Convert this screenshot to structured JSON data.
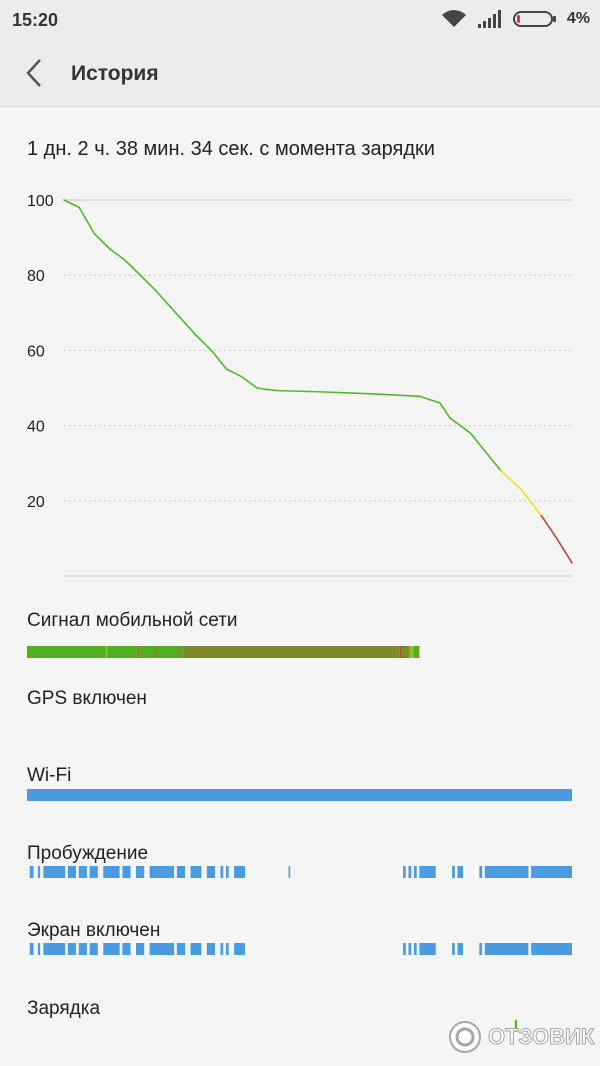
{
  "status_bar": {
    "time": "15:20",
    "battery_percent": "4%",
    "icons": [
      "wifi-icon",
      "signal-icon",
      "battery-icon"
    ]
  },
  "header": {
    "title": "История",
    "back_icon": "chevron-left-icon"
  },
  "summary": {
    "since_charge": "1 дн. 2 ч. 38 мин. 34 сек. с момента зарядки"
  },
  "chart_data": {
    "type": "line",
    "ytick_labels": [
      "100",
      "80",
      "60",
      "40",
      "20"
    ],
    "ylim": [
      0,
      100
    ],
    "grid": true,
    "x_fraction": [
      0,
      0.03,
      0.06,
      0.09,
      0.12,
      0.15,
      0.18,
      0.22,
      0.26,
      0.29,
      0.32,
      0.35,
      0.38,
      0.4,
      0.42,
      0.5,
      0.6,
      0.7,
      0.74,
      0.76,
      0.8,
      0.83,
      0.86,
      0.9,
      0.94,
      0.97,
      1.0
    ],
    "battery_level": [
      100,
      98,
      91,
      87,
      84,
      80,
      76,
      70,
      64,
      60,
      55,
      53,
      50,
      49.6,
      49.3,
      49,
      48.5,
      47.8,
      46,
      42,
      38,
      33,
      28,
      23,
      16,
      10,
      3.5
    ],
    "colors": {
      "good": "#52b82a",
      "medium": "#f2dd20",
      "low": "#c8413a"
    },
    "thresholds": {
      "medium_below": 29,
      "low_below": 14
    }
  },
  "tracks": {
    "mobile_signal": {
      "label": "Сигнал мобильной сети",
      "colors": {
        "strong": "#52ad1f",
        "medium": "#7e8a2b",
        "alt": "#8fbf2f",
        "weak": "#9a5a2a"
      },
      "segments": [
        {
          "from": 0,
          "to": 0.2,
          "c": "strong"
        },
        {
          "from": 0.2,
          "to": 0.205,
          "c": "alt"
        },
        {
          "from": 0.205,
          "to": 0.28,
          "c": "strong"
        },
        {
          "from": 0.28,
          "to": 0.29,
          "c": "medium"
        },
        {
          "from": 0.29,
          "to": 0.33,
          "c": "strong"
        },
        {
          "from": 0.33,
          "to": 0.335,
          "c": "medium"
        },
        {
          "from": 0.335,
          "to": 0.385,
          "c": "strong"
        },
        {
          "from": 0.385,
          "to": 0.39,
          "c": "medium"
        },
        {
          "from": 0.39,
          "to": 0.4,
          "c": "strong"
        },
        {
          "from": 0.4,
          "to": 0.95,
          "c": "medium"
        },
        {
          "from": 0.95,
          "to": 0.955,
          "c": "weak"
        },
        {
          "from": 0.955,
          "to": 0.975,
          "c": "medium"
        },
        {
          "from": 0.975,
          "to": 0.985,
          "c": "alt"
        },
        {
          "from": 0.985,
          "to": 1.0,
          "c": "strong"
        }
      ],
      "length_fraction": 0.72
    },
    "gps": {
      "label": "GPS включен"
    },
    "wifi": {
      "label": "Wi-Fi",
      "color": "#4a9be0",
      "segments": [
        {
          "from": 0,
          "to": 1
        }
      ]
    },
    "awake": {
      "label": "Пробуждение",
      "color": "#4a9be0",
      "segments": [
        {
          "from": 0.005,
          "to": 0.012
        },
        {
          "from": 0.02,
          "to": 0.024
        },
        {
          "from": 0.03,
          "to": 0.07
        },
        {
          "from": 0.075,
          "to": 0.09
        },
        {
          "from": 0.095,
          "to": 0.11
        },
        {
          "from": 0.115,
          "to": 0.13
        },
        {
          "from": 0.14,
          "to": 0.17
        },
        {
          "from": 0.175,
          "to": 0.19
        },
        {
          "from": 0.2,
          "to": 0.215
        },
        {
          "from": 0.225,
          "to": 0.27
        },
        {
          "from": 0.275,
          "to": 0.29
        },
        {
          "from": 0.3,
          "to": 0.32
        },
        {
          "from": 0.33,
          "to": 0.345
        },
        {
          "from": 0.355,
          "to": 0.36
        },
        {
          "from": 0.365,
          "to": 0.37
        },
        {
          "from": 0.38,
          "to": 0.4
        },
        {
          "from": 0.48,
          "to": 0.482
        },
        {
          "from": 0.69,
          "to": 0.695
        },
        {
          "from": 0.7,
          "to": 0.705
        },
        {
          "from": 0.71,
          "to": 0.715
        },
        {
          "from": 0.72,
          "to": 0.75
        },
        {
          "from": 0.78,
          "to": 0.785
        },
        {
          "from": 0.79,
          "to": 0.8
        },
        {
          "from": 0.83,
          "to": 0.835
        },
        {
          "from": 0.84,
          "to": 0.92
        },
        {
          "from": 0.925,
          "to": 1.0
        }
      ]
    },
    "screen_on": {
      "label": "Экран включен",
      "color": "#4a9be0",
      "segments": [
        {
          "from": 0.005,
          "to": 0.012
        },
        {
          "from": 0.02,
          "to": 0.024
        },
        {
          "from": 0.03,
          "to": 0.07
        },
        {
          "from": 0.075,
          "to": 0.09
        },
        {
          "from": 0.095,
          "to": 0.11
        },
        {
          "from": 0.115,
          "to": 0.13
        },
        {
          "from": 0.14,
          "to": 0.17
        },
        {
          "from": 0.175,
          "to": 0.19
        },
        {
          "from": 0.2,
          "to": 0.215
        },
        {
          "from": 0.225,
          "to": 0.27
        },
        {
          "from": 0.275,
          "to": 0.29
        },
        {
          "from": 0.3,
          "to": 0.32
        },
        {
          "from": 0.33,
          "to": 0.345
        },
        {
          "from": 0.355,
          "to": 0.36
        },
        {
          "from": 0.365,
          "to": 0.37
        },
        {
          "from": 0.38,
          "to": 0.4
        },
        {
          "from": 0.69,
          "to": 0.695
        },
        {
          "from": 0.7,
          "to": 0.705
        },
        {
          "from": 0.71,
          "to": 0.715
        },
        {
          "from": 0.72,
          "to": 0.75
        },
        {
          "from": 0.78,
          "to": 0.785
        },
        {
          "from": 0.79,
          "to": 0.8
        },
        {
          "from": 0.83,
          "to": 0.835
        },
        {
          "from": 0.84,
          "to": 0.92
        },
        {
          "from": 0.925,
          "to": 1.0
        }
      ]
    },
    "charging": {
      "label": "Зарядка",
      "color": "#52b82a",
      "segments": [
        {
          "from": 0.895,
          "to": 0.899
        }
      ]
    }
  },
  "watermark": {
    "text": "ОТЗОВИК"
  }
}
